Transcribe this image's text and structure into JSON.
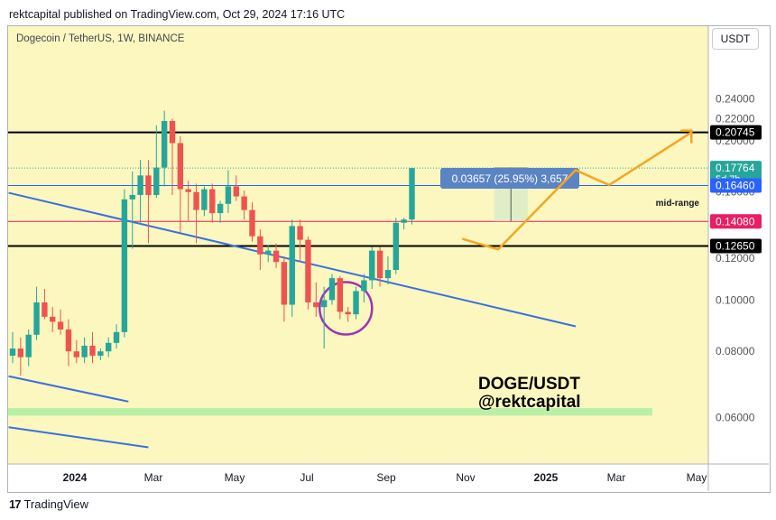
{
  "publisher_line": "rektcapital published on TradingView.com, Oct 29, 2024 17:16 UTC",
  "symbol_line": "Dogecoin / TetherUS, 1W, BINANCE",
  "currency": "USDT",
  "footer": {
    "logo_glyph": "17",
    "brand": "TradingView"
  },
  "colors": {
    "background": "#fbf7bf",
    "bull": "#26a69a",
    "bear": "#ef5350",
    "trend": "#3b6fe0",
    "projection": "#f5a623",
    "circle": "#9b35b5",
    "support_zone": "#b9f0a8",
    "level_current": "#26a69a",
    "level_blue": "#2962ff",
    "level_pink": "#e91e63",
    "level_black": "#000000"
  },
  "chart_data": {
    "type": "candlestick",
    "y_scale": "log",
    "ylim": [
      0.049,
      0.295
    ],
    "x_axis_ticks": [
      "2024",
      "Mar",
      "May",
      "Jul",
      "Sep",
      "Nov",
      "2025",
      "Mar",
      "May"
    ],
    "y_axis_ticks": [
      "0.24000",
      "0.22000",
      "0.20000",
      "0.18000",
      "0.16000",
      "0.14000",
      "0.12000",
      "0.10000",
      "0.08000",
      "0.06000"
    ],
    "candles": [
      {
        "o": 0.0785,
        "h": 0.087,
        "l": 0.076,
        "c": 0.081
      },
      {
        "o": 0.081,
        "h": 0.085,
        "l": 0.072,
        "c": 0.078
      },
      {
        "o": 0.078,
        "h": 0.088,
        "l": 0.075,
        "c": 0.086
      },
      {
        "o": 0.086,
        "h": 0.106,
        "l": 0.084,
        "c": 0.099
      },
      {
        "o": 0.099,
        "h": 0.105,
        "l": 0.092,
        "c": 0.093
      },
      {
        "o": 0.093,
        "h": 0.097,
        "l": 0.087,
        "c": 0.091
      },
      {
        "o": 0.091,
        "h": 0.096,
        "l": 0.086,
        "c": 0.088
      },
      {
        "o": 0.088,
        "h": 0.092,
        "l": 0.075,
        "c": 0.08
      },
      {
        "o": 0.08,
        "h": 0.084,
        "l": 0.076,
        "c": 0.078
      },
      {
        "o": 0.078,
        "h": 0.085,
        "l": 0.076,
        "c": 0.082
      },
      {
        "o": 0.082,
        "h": 0.087,
        "l": 0.076,
        "c": 0.0785
      },
      {
        "o": 0.0785,
        "h": 0.081,
        "l": 0.077,
        "c": 0.08
      },
      {
        "o": 0.08,
        "h": 0.085,
        "l": 0.078,
        "c": 0.083
      },
      {
        "o": 0.083,
        "h": 0.09,
        "l": 0.081,
        "c": 0.087
      },
      {
        "o": 0.087,
        "h": 0.162,
        "l": 0.085,
        "c": 0.155
      },
      {
        "o": 0.155,
        "h": 0.175,
        "l": 0.125,
        "c": 0.158
      },
      {
        "o": 0.158,
        "h": 0.184,
        "l": 0.139,
        "c": 0.172
      },
      {
        "o": 0.172,
        "h": 0.184,
        "l": 0.128,
        "c": 0.158
      },
      {
        "o": 0.158,
        "h": 0.214,
        "l": 0.156,
        "c": 0.178
      },
      {
        "o": 0.178,
        "h": 0.228,
        "l": 0.164,
        "c": 0.218
      },
      {
        "o": 0.218,
        "h": 0.22,
        "l": 0.158,
        "c": 0.198
      },
      {
        "o": 0.198,
        "h": 0.204,
        "l": 0.134,
        "c": 0.162
      },
      {
        "o": 0.162,
        "h": 0.168,
        "l": 0.141,
        "c": 0.16
      },
      {
        "o": 0.16,
        "h": 0.166,
        "l": 0.128,
        "c": 0.148
      },
      {
        "o": 0.148,
        "h": 0.164,
        "l": 0.144,
        "c": 0.162
      },
      {
        "o": 0.162,
        "h": 0.166,
        "l": 0.14,
        "c": 0.146
      },
      {
        "o": 0.146,
        "h": 0.154,
        "l": 0.14,
        "c": 0.152
      },
      {
        "o": 0.152,
        "h": 0.176,
        "l": 0.146,
        "c": 0.164
      },
      {
        "o": 0.164,
        "h": 0.172,
        "l": 0.154,
        "c": 0.157
      },
      {
        "o": 0.157,
        "h": 0.161,
        "l": 0.142,
        "c": 0.148
      },
      {
        "o": 0.148,
        "h": 0.153,
        "l": 0.129,
        "c": 0.132
      },
      {
        "o": 0.132,
        "h": 0.136,
        "l": 0.114,
        "c": 0.122
      },
      {
        "o": 0.122,
        "h": 0.127,
        "l": 0.118,
        "c": 0.124
      },
      {
        "o": 0.124,
        "h": 0.128,
        "l": 0.115,
        "c": 0.118
      },
      {
        "o": 0.118,
        "h": 0.121,
        "l": 0.091,
        "c": 0.098
      },
      {
        "o": 0.098,
        "h": 0.142,
        "l": 0.093,
        "c": 0.138
      },
      {
        "o": 0.138,
        "h": 0.142,
        "l": 0.118,
        "c": 0.13
      },
      {
        "o": 0.13,
        "h": 0.132,
        "l": 0.096,
        "c": 0.099
      },
      {
        "o": 0.099,
        "h": 0.108,
        "l": 0.093,
        "c": 0.097
      },
      {
        "o": 0.097,
        "h": 0.106,
        "l": 0.081,
        "c": 0.1
      },
      {
        "o": 0.1,
        "h": 0.112,
        "l": 0.098,
        "c": 0.11
      },
      {
        "o": 0.11,
        "h": 0.111,
        "l": 0.092,
        "c": 0.095
      },
      {
        "o": 0.095,
        "h": 0.097,
        "l": 0.091,
        "c": 0.094
      },
      {
        "o": 0.094,
        "h": 0.106,
        "l": 0.092,
        "c": 0.104
      },
      {
        "o": 0.104,
        "h": 0.112,
        "l": 0.099,
        "c": 0.109
      },
      {
        "o": 0.109,
        "h": 0.126,
        "l": 0.105,
        "c": 0.124
      },
      {
        "o": 0.124,
        "h": 0.126,
        "l": 0.106,
        "c": 0.11
      },
      {
        "o": 0.11,
        "h": 0.121,
        "l": 0.107,
        "c": 0.114
      },
      {
        "o": 0.114,
        "h": 0.143,
        "l": 0.112,
        "c": 0.14
      },
      {
        "o": 0.14,
        "h": 0.143,
        "l": 0.136,
        "c": 0.142
      },
      {
        "o": 0.142,
        "h": 0.178,
        "l": 0.139,
        "c": 0.1776
      }
    ],
    "price_labels": [
      {
        "value": 0.20745,
        "text": "0.20745",
        "color": "#000000"
      },
      {
        "value": 0.17764,
        "text": "0.17764",
        "sub": "5d 7h",
        "color": "#26a69a"
      },
      {
        "value": 0.1646,
        "text": "0.16460",
        "color": "#2962ff"
      },
      {
        "value": 0.1408,
        "text": "0.14080",
        "color": "#e91e63"
      },
      {
        "value": 0.1265,
        "text": "0.12650",
        "color": "#000000"
      }
    ],
    "horizontal_levels": [
      {
        "value": 0.20745,
        "color": "#000000",
        "width": 2,
        "style": "solid"
      },
      {
        "value": 0.17764,
        "color": "#26a69a",
        "width": 1,
        "style": "dotted"
      },
      {
        "value": 0.1646,
        "color": "#2962ff",
        "width": 1,
        "style": "solid"
      },
      {
        "value": 0.1408,
        "color": "#e91e63",
        "width": 1,
        "style": "solid"
      },
      {
        "value": 0.1265,
        "color": "#000000",
        "width": 2,
        "style": "solid"
      }
    ],
    "measure_label": "0.03657 (25.95%) 3,657",
    "mid_range_label": "mid-range",
    "watermark": [
      "DOGE/USDT",
      "@rektcapital"
    ]
  }
}
